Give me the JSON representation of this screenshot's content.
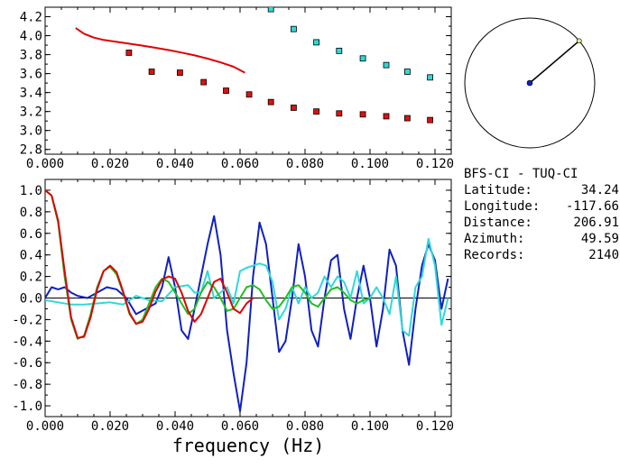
{
  "chart_data": [
    {
      "type": "scatter",
      "xlim": [
        0.0,
        0.125
      ],
      "ylim": [
        2.75,
        4.3
      ],
      "x_ticks": [
        "0.000",
        "0.020",
        "0.040",
        "0.060",
        "0.080",
        "0.100",
        "0.120"
      ],
      "x_tick_values": [
        0.0,
        0.02,
        0.04,
        0.06,
        0.08,
        0.1,
        0.12
      ],
      "y_ticks": [
        "2.8",
        "3.0",
        "3.2",
        "3.4",
        "3.6",
        "3.8",
        "4.0",
        "4.2"
      ],
      "y_tick_values": [
        2.8,
        3.0,
        3.2,
        3.4,
        3.6,
        3.8,
        4.0,
        4.2
      ],
      "series": [
        {
          "kind": "line",
          "color": "#e00000",
          "x": [
            0.0094,
            0.012,
            0.015,
            0.018,
            0.022,
            0.026,
            0.03,
            0.034,
            0.038,
            0.042,
            0.046,
            0.05,
            0.054,
            0.058,
            0.0615
          ],
          "y": [
            4.08,
            4.02,
            3.98,
            3.955,
            3.935,
            3.915,
            3.895,
            3.872,
            3.848,
            3.822,
            3.792,
            3.758,
            3.718,
            3.672,
            3.61
          ]
        },
        {
          "kind": "points",
          "color": "#e01010",
          "x": [
            0.0258,
            0.0328,
            0.0415,
            0.0488,
            0.0557,
            0.0628,
            0.0695,
            0.0765,
            0.0835,
            0.0905,
            0.0978,
            0.105,
            0.1115,
            0.1185
          ],
          "y": [
            3.82,
            3.62,
            3.61,
            3.51,
            3.42,
            3.38,
            3.3,
            3.24,
            3.2,
            3.18,
            3.17,
            3.15,
            3.13,
            3.11
          ]
        },
        {
          "kind": "points",
          "color": "#30d8d8",
          "x": [
            0.0695,
            0.0765,
            0.0835,
            0.0905,
            0.0978,
            0.105,
            0.1115,
            0.1185
          ],
          "y": [
            4.28,
            4.07,
            3.93,
            3.84,
            3.76,
            3.69,
            3.62,
            3.56
          ]
        }
      ]
    },
    {
      "type": "line",
      "xlabel": "frequency (Hz)",
      "xlim": [
        0.0,
        0.125
      ],
      "ylim": [
        -1.1,
        1.1
      ],
      "x_ticks": [
        "0.000",
        "0.020",
        "0.040",
        "0.060",
        "0.080",
        "0.100",
        "0.120"
      ],
      "x_tick_values": [
        0.0,
        0.02,
        0.04,
        0.06,
        0.08,
        0.1,
        0.12
      ],
      "y_ticks": [
        "-1.0",
        "-0.8",
        "-0.6",
        "-0.4",
        "-0.2",
        "0.0",
        "0.2",
        "0.4",
        "0.6",
        "0.8",
        "1.0"
      ],
      "y_tick_values": [
        -1.0,
        -0.8,
        -0.6,
        -0.4,
        -0.2,
        0.0,
        0.2,
        0.4,
        0.6,
        0.8,
        1.0
      ],
      "series": [
        {
          "color": "#1020c0",
          "x": [
            0.0,
            0.002,
            0.004,
            0.006,
            0.008,
            0.01,
            0.013,
            0.016,
            0.019,
            0.022,
            0.025,
            0.028,
            0.031,
            0.034,
            0.036,
            0.038,
            0.04,
            0.042,
            0.044,
            0.046,
            0.048,
            0.05,
            0.052,
            0.054,
            0.056,
            0.058,
            0.06,
            0.062,
            0.064,
            0.066,
            0.068,
            0.07,
            0.072,
            0.074,
            0.076,
            0.078,
            0.08,
            0.082,
            0.084,
            0.086,
            0.088,
            0.09,
            0.092,
            0.094,
            0.096,
            0.098,
            0.1,
            0.102,
            0.104,
            0.106,
            0.108,
            0.11,
            0.112,
            0.114,
            0.116,
            0.118,
            0.12,
            0.122,
            0.124
          ],
          "y": [
            0.0,
            0.1,
            0.08,
            0.1,
            0.05,
            0.02,
            0.0,
            0.05,
            0.1,
            0.08,
            0.0,
            -0.15,
            -0.1,
            -0.05,
            0.1,
            0.38,
            0.1,
            -0.3,
            -0.38,
            -0.1,
            0.2,
            0.5,
            0.76,
            0.4,
            -0.3,
            -0.7,
            -1.05,
            -0.6,
            0.2,
            0.7,
            0.5,
            0.0,
            -0.5,
            -0.4,
            0.0,
            0.5,
            0.2,
            -0.3,
            -0.45,
            0.0,
            0.35,
            0.4,
            -0.1,
            -0.38,
            0.0,
            0.3,
            0.0,
            -0.45,
            -0.1,
            0.45,
            0.3,
            -0.3,
            -0.62,
            -0.1,
            0.3,
            0.5,
            0.35,
            -0.1,
            0.18
          ]
        },
        {
          "color": "#30d8d8",
          "x": [
            0.0,
            0.004,
            0.008,
            0.012,
            0.016,
            0.02,
            0.024,
            0.028,
            0.032,
            0.036,
            0.04,
            0.044,
            0.046,
            0.048,
            0.05,
            0.052,
            0.054,
            0.056,
            0.058,
            0.06,
            0.062,
            0.064,
            0.066,
            0.068,
            0.07,
            0.072,
            0.074,
            0.076,
            0.078,
            0.08,
            0.082,
            0.084,
            0.086,
            0.088,
            0.09,
            0.092,
            0.094,
            0.096,
            0.098,
            0.1,
            0.102,
            0.104,
            0.106,
            0.108,
            0.11,
            0.112,
            0.114,
            0.116,
            0.118,
            0.12,
            0.122,
            0.124
          ],
          "y": [
            -0.02,
            -0.04,
            -0.06,
            -0.06,
            -0.05,
            -0.04,
            -0.06,
            0.02,
            -0.02,
            -0.03,
            0.1,
            0.12,
            0.05,
            0.05,
            0.25,
            0.0,
            0.05,
            0.1,
            -0.05,
            0.25,
            0.28,
            0.3,
            0.32,
            0.3,
            0.15,
            -0.2,
            -0.1,
            0.1,
            -0.05,
            0.1,
            0.0,
            0.05,
            0.2,
            0.1,
            0.2,
            0.15,
            0.0,
            0.25,
            -0.05,
            0.0,
            0.1,
            0.0,
            -0.15,
            0.2,
            -0.3,
            -0.35,
            0.1,
            0.2,
            0.55,
            0.3,
            -0.25,
            0.0
          ]
        },
        {
          "color": "#20c020",
          "x": [
            0.0,
            0.002,
            0.004,
            0.006,
            0.008,
            0.01,
            0.012,
            0.014,
            0.016,
            0.018,
            0.02,
            0.022,
            0.024,
            0.026,
            0.028,
            0.03,
            0.032,
            0.034,
            0.036,
            0.038,
            0.04,
            0.042,
            0.044,
            0.046,
            0.048,
            0.05,
            0.052,
            0.054,
            0.056,
            0.058,
            0.06,
            0.062,
            0.064,
            0.066,
            0.068,
            0.07,
            0.072,
            0.074,
            0.076,
            0.078,
            0.08,
            0.082,
            0.084,
            0.086,
            0.088,
            0.09,
            0.092,
            0.094,
            0.096,
            0.098,
            0.1
          ],
          "y": [
            1.0,
            0.95,
            0.7,
            0.2,
            -0.2,
            -0.38,
            -0.35,
            -0.15,
            0.1,
            0.25,
            0.29,
            0.22,
            0.05,
            -0.15,
            -0.24,
            -0.2,
            -0.05,
            0.1,
            0.18,
            0.15,
            0.05,
            -0.05,
            -0.15,
            -0.1,
            0.05,
            0.15,
            0.1,
            0.0,
            -0.12,
            -0.1,
            0.0,
            0.1,
            0.12,
            0.08,
            -0.02,
            -0.1,
            -0.08,
            0.0,
            0.1,
            0.12,
            0.05,
            -0.05,
            -0.08,
            0.0,
            0.08,
            0.1,
            0.05,
            -0.02,
            -0.05,
            -0.02,
            0.0
          ]
        },
        {
          "color": "#e00000",
          "x": [
            0.0,
            0.002,
            0.004,
            0.006,
            0.008,
            0.01,
            0.012,
            0.014,
            0.016,
            0.018,
            0.02,
            0.022,
            0.024,
            0.026,
            0.028,
            0.03,
            0.032,
            0.034,
            0.036,
            0.038,
            0.04,
            0.042,
            0.044,
            0.046,
            0.048,
            0.05,
            0.052,
            0.054,
            0.056,
            0.058,
            0.06,
            0.062,
            0.064
          ],
          "y": [
            1.0,
            0.95,
            0.72,
            0.25,
            -0.18,
            -0.37,
            -0.36,
            -0.18,
            0.08,
            0.25,
            0.3,
            0.24,
            0.06,
            -0.14,
            -0.24,
            -0.22,
            -0.1,
            0.06,
            0.17,
            0.2,
            0.18,
            0.05,
            -0.12,
            -0.22,
            -0.15,
            0.0,
            0.15,
            0.18,
            0.05,
            -0.1,
            -0.14,
            -0.05,
            0.0
          ]
        }
      ]
    }
  ],
  "compass": {
    "circle_color": "#000000",
    "line_color": "#000000",
    "center_dot_color": "#1020c0",
    "tip_color": "#e8e890",
    "azimuth_deg": 49.59
  },
  "info": {
    "pair": "BFS-CI - TUQ-CI",
    "latitude_label": "Latitude:",
    "latitude_value": "34.24",
    "longitude_label": "Longitude:",
    "longitude_value": "-117.66",
    "distance_label": "Distance:",
    "distance_value": "206.91",
    "azimuth_label": "Azimuth:",
    "azimuth_value": "49.59",
    "records_label": "Records:",
    "records_value": "2140"
  }
}
